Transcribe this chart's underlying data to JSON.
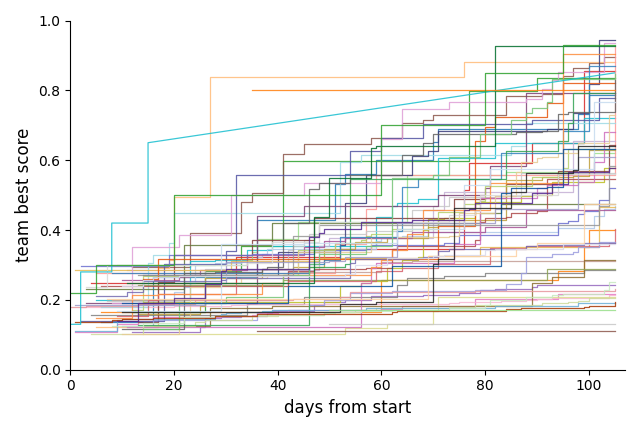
{
  "title": "",
  "xlabel": "days from start",
  "ylabel": "team best score",
  "xlim": [
    0,
    107
  ],
  "ylim": [
    0.0,
    1.0
  ],
  "yticks": [
    0.0,
    0.2,
    0.4,
    0.6,
    0.8,
    1.0
  ],
  "xticks": [
    0,
    20,
    40,
    60,
    80,
    100
  ],
  "num_teams": 60,
  "seed": 42,
  "colors": [
    "#1f77b4",
    "#ff7f0e",
    "#2ca02c",
    "#d62728",
    "#9467bd",
    "#8c564b",
    "#e377c2",
    "#7f7f7f",
    "#bcbd22",
    "#17becf",
    "#aec7e8",
    "#ffbb78",
    "#98df8a",
    "#ff9896",
    "#c5b0d5",
    "#c49c94",
    "#f7b6d2",
    "#c7c7c7",
    "#dbdb8d",
    "#9edae5",
    "#393b79",
    "#637939",
    "#8c6d31",
    "#843c39",
    "#7b4173",
    "#5254a3",
    "#8ca252",
    "#bd9e39",
    "#ad494a",
    "#a55194",
    "#6b6ecf",
    "#b5cf6b",
    "#e7ba52",
    "#d6616b",
    "#ce6dbd",
    "#9c9ede",
    "#cedb9c",
    "#e7cb94",
    "#e7969c",
    "#de9ed6",
    "#3182bd",
    "#e6550d",
    "#31a354",
    "#756bb1",
    "#636363",
    "#6baed6",
    "#fd8d3c",
    "#74c476",
    "#9e9ac8",
    "#969696",
    "#c6dbef",
    "#fdd0a2",
    "#c7e9c0",
    "#dadaeb",
    "#d9d9d9",
    "#08519c",
    "#a63603",
    "#006d2c",
    "#54278f",
    "#252525",
    "#2171b5",
    "#f16913"
  ]
}
